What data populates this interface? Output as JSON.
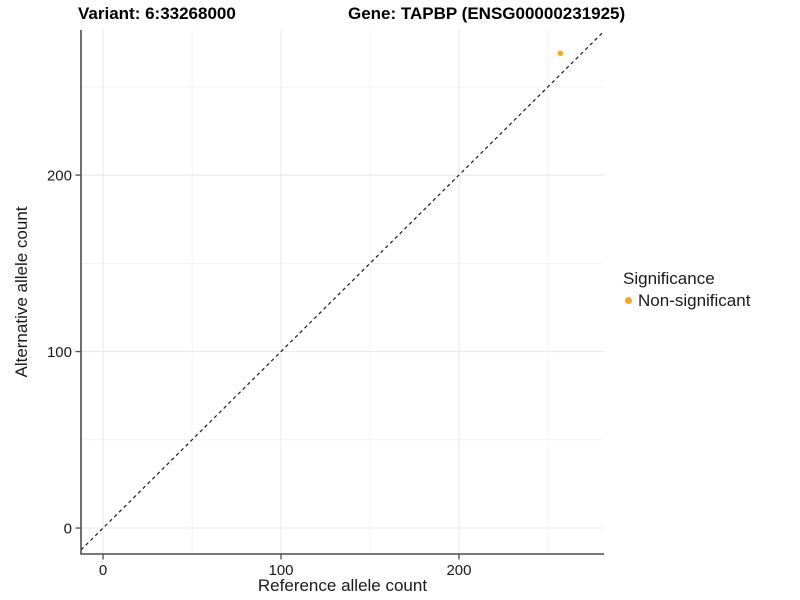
{
  "chart_data": {
    "type": "scatter",
    "titles": {
      "left": "Variant: 6:33268000",
      "right": "Gene: TAPBP (ENSG00000231925)"
    },
    "xlabel": "Reference allele count",
    "ylabel": "Alternative allele count",
    "xlim": [
      -12.4,
      281.5
    ],
    "ylim": [
      -14.7,
      282.2
    ],
    "x_ticks": [
      0,
      100,
      200
    ],
    "y_ticks": [
      0,
      100,
      200
    ],
    "x_minor_ticks": [
      50,
      150,
      250
    ],
    "y_minor_ticks": [
      50,
      150,
      250
    ],
    "grid": true,
    "identity_line": {
      "slope": 1,
      "intercept": 0,
      "linetype": "dashed",
      "color": "#1a1a1a"
    },
    "points": [
      {
        "x": 257,
        "y": 269,
        "significance": "Non-significant",
        "color": "#F8A62B"
      }
    ],
    "legend": {
      "title": "Significance",
      "position": "right",
      "entries": [
        {
          "label": "Non-significant",
          "color": "#F8A62B"
        }
      ]
    },
    "colors": {
      "axis": "#4d4d4d",
      "grid_major": "#e8e8e8",
      "grid_minor": "#f3f3f3",
      "text": "#1a1a1a",
      "background": "#ffffff"
    }
  }
}
